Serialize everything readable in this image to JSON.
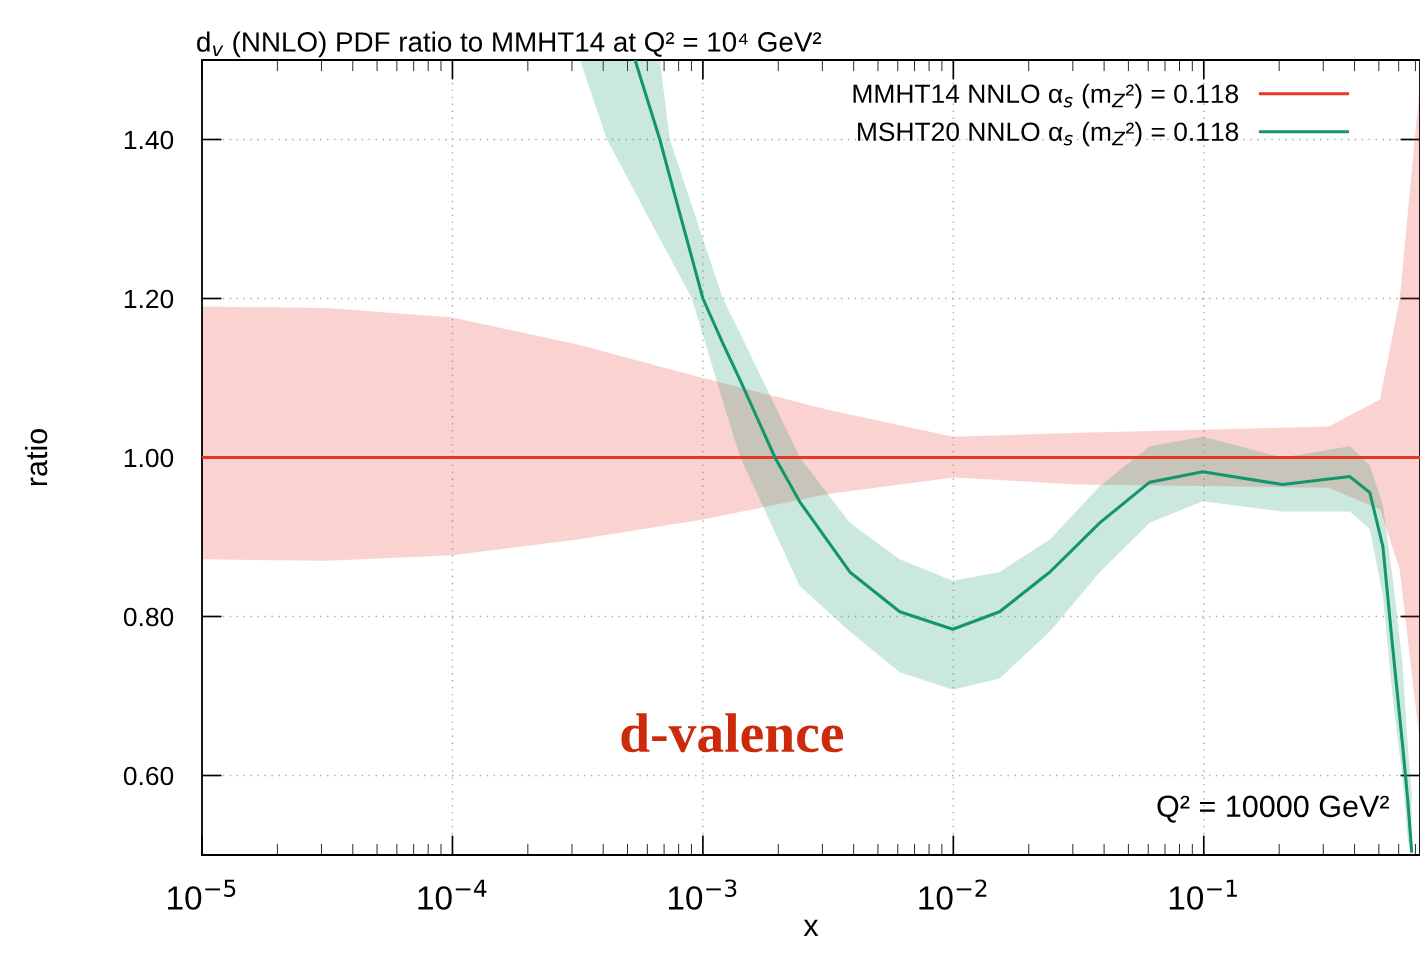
{
  "chart_data": {
    "type": "line",
    "title": "d$_{v}$ (NNLO) PDF ratio to MMHT14 at Q² = 10⁴ GeV²",
    "xlabel": "x",
    "ylabel": "ratio",
    "log": "x",
    "xlim": [
      1e-05,
      0.73
    ],
    "ylim": [
      0.5,
      1.5
    ],
    "xticks": [
      {
        "value": 1e-05,
        "label": "10$^{−5}$"
      },
      {
        "value": 0.0001,
        "label": "10$^{−4}$"
      },
      {
        "value": 0.001,
        "label": "10$^{−3}$"
      },
      {
        "value": 0.01,
        "label": "10$^{−2}$"
      },
      {
        "value": 0.1,
        "label": "10$^{−1}$"
      }
    ],
    "yticks": [
      {
        "value": 0.6,
        "label": "0.60"
      },
      {
        "value": 0.8,
        "label": "0.80"
      },
      {
        "value": 1.0,
        "label": "1.00"
      },
      {
        "value": 1.2,
        "label": "1.20"
      },
      {
        "value": 1.4,
        "label": "1.40"
      }
    ],
    "grid": true,
    "legend": "top right",
    "marker": "none",
    "line_style": "solid",
    "annotations": [
      "d-valence",
      "Q² = 10000 GeV²"
    ],
    "series": [
      {
        "name": "MMHT14 NNLO α$_{s}$ (m$_{Z}$²) = 0.118",
        "color": "#e8352a",
        "x": [
          1e-05,
          3.16e-05,
          0.0001,
          0.000316,
          0.001,
          0.00316,
          0.01,
          0.0316,
          0.1,
          0.316,
          0.505,
          0.605,
          0.73
        ],
        "values": [
          1.0,
          1.0,
          1.0,
          1.0,
          1.0,
          1.0,
          1.0,
          1.0,
          1.0,
          1.0,
          1.0,
          1.0,
          1.0
        ],
        "upper": [
          1.19,
          1.188,
          1.176,
          1.142,
          1.1,
          1.06,
          1.026,
          1.031,
          1.035,
          1.039,
          1.073,
          1.198,
          1.47
        ],
        "lower": [
          0.872,
          0.87,
          0.877,
          0.897,
          0.922,
          0.954,
          0.975,
          0.966,
          0.964,
          0.962,
          0.935,
          0.86,
          0.64
        ]
      },
      {
        "name": "MSHT20 NNLO α$_{s}$ (m$_{Z}$²) = 0.118",
        "color": "#14956d",
        "x": [
          0.000323,
          0.000414,
          0.000536,
          0.000673,
          0.000738,
          0.000904,
          0.001,
          0.0012,
          0.00141,
          0.00194,
          0.00244,
          0.00386,
          0.00611,
          0.00995,
          0.0153,
          0.0243,
          0.0385,
          0.0608,
          0.0991,
          0.2065,
          0.383,
          0.46,
          0.519,
          0.567,
          0.622,
          0.652,
          0.676
        ],
        "values": [
          null,
          null,
          1.5,
          1.4,
          1.353,
          1.251,
          1.2,
          1.144,
          1.097,
          1.0,
          0.944,
          0.856,
          0.806,
          0.784,
          0.806,
          0.856,
          0.918,
          0.969,
          0.982,
          0.966,
          0.976,
          0.956,
          0.888,
          0.763,
          0.638,
          0.57,
          0.505
        ],
        "upper": [
          1.5,
          1.5,
          1.5,
          1.5,
          1.4,
          1.317,
          1.275,
          1.2,
          1.156,
          1.065,
          1.0,
          0.918,
          0.872,
          0.845,
          0.856,
          0.897,
          0.964,
          1.014,
          1.026,
          1.0,
          1.014,
          0.99,
          0.94,
          0.85,
          0.74,
          0.638,
          0.58
        ],
        "lower": [
          1.5,
          1.4,
          1.334,
          1.275,
          1.252,
          1.2,
          1.154,
          1.071,
          1.0,
          0.906,
          0.838,
          0.781,
          0.73,
          0.708,
          0.722,
          0.781,
          0.856,
          0.918,
          0.945,
          0.932,
          0.932,
          0.91,
          0.826,
          0.7,
          0.596,
          0.52,
          0.5
        ]
      }
    ]
  }
}
